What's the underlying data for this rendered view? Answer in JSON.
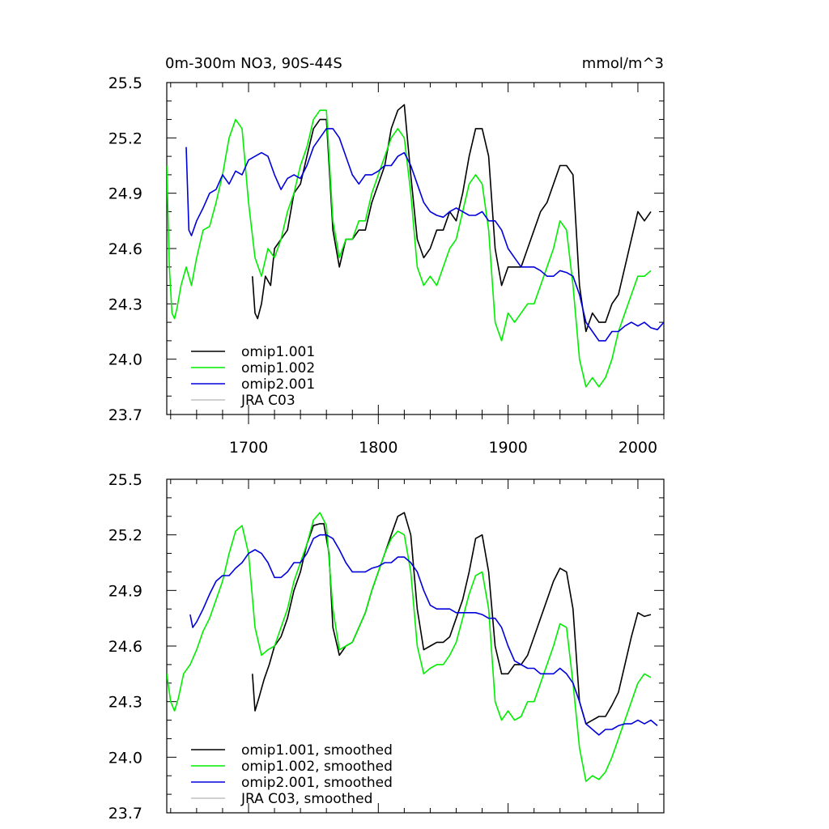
{
  "header": {
    "left_title": "0m-300m NO3, 90S-44S",
    "right_title": "mmol/m^3"
  },
  "chart_data": [
    {
      "type": "line",
      "title": "0m-300m NO3, 90S-44S",
      "units": "mmol/m^3",
      "xlim": [
        1637,
        2020
      ],
      "ylim": [
        23.7,
        25.5
      ],
      "x_ticks": [
        1700,
        1800,
        1900,
        2000
      ],
      "x_tick_labels": [
        "1700",
        "1800",
        "1900",
        "2000"
      ],
      "y_ticks": [
        23.7,
        24.0,
        24.3,
        24.6,
        24.9,
        25.2,
        25.5
      ],
      "y_tick_labels": [
        "23.7",
        "24.0",
        "24.3",
        "24.6",
        "24.9",
        "25.2",
        "25.5"
      ],
      "legend_position": "bottom-left",
      "series": [
        {
          "name": "omip1.001",
          "color": "#000000",
          "x": [
            1703,
            1705,
            1707,
            1710,
            1713,
            1717,
            1720,
            1725,
            1730,
            1735,
            1740,
            1745,
            1750,
            1755,
            1760,
            1765,
            1770,
            1775,
            1780,
            1785,
            1790,
            1795,
            1800,
            1805,
            1810,
            1815,
            1820,
            1825,
            1830,
            1835,
            1840,
            1845,
            1850,
            1855,
            1860,
            1865,
            1870,
            1875,
            1880,
            1885,
            1890,
            1895,
            1900,
            1905,
            1910,
            1915,
            1920,
            1925,
            1930,
            1935,
            1940,
            1945,
            1950,
            1955,
            1960,
            1965,
            1970,
            1975,
            1980,
            1985,
            1990,
            1995,
            2000,
            2005,
            2010
          ],
          "values": [
            24.45,
            24.25,
            24.22,
            24.3,
            24.45,
            24.4,
            24.6,
            24.65,
            24.7,
            24.9,
            24.95,
            25.1,
            25.25,
            25.3,
            25.3,
            24.7,
            24.5,
            24.65,
            24.65,
            24.7,
            24.7,
            24.85,
            24.95,
            25.05,
            25.25,
            25.35,
            25.38,
            25.0,
            24.65,
            24.55,
            24.6,
            24.7,
            24.7,
            24.8,
            24.75,
            24.9,
            25.1,
            25.25,
            25.25,
            25.1,
            24.6,
            24.4,
            24.5,
            24.5,
            24.5,
            24.6,
            24.7,
            24.8,
            24.85,
            24.95,
            25.05,
            25.05,
            25.0,
            24.4,
            24.15,
            24.25,
            24.2,
            24.2,
            24.3,
            24.35,
            24.5,
            24.65,
            24.8,
            24.75,
            24.8
          ]
        },
        {
          "name": "omip1.002",
          "color": "#00ee00",
          "x": [
            1637,
            1639,
            1641,
            1643,
            1645,
            1648,
            1652,
            1656,
            1660,
            1665,
            1670,
            1675,
            1680,
            1685,
            1690,
            1695,
            1700,
            1705,
            1710,
            1715,
            1720,
            1725,
            1730,
            1735,
            1740,
            1745,
            1750,
            1755,
            1760,
            1765,
            1770,
            1775,
            1780,
            1785,
            1790,
            1795,
            1800,
            1805,
            1810,
            1815,
            1820,
            1825,
            1830,
            1835,
            1840,
            1845,
            1850,
            1855,
            1860,
            1865,
            1870,
            1875,
            1880,
            1885,
            1890,
            1895,
            1900,
            1905,
            1910,
            1915,
            1920,
            1925,
            1930,
            1935,
            1940,
            1945,
            1950,
            1955,
            1960,
            1965,
            1970,
            1975,
            1980,
            1985,
            1990,
            1995,
            2000,
            2005,
            2010
          ],
          "values": [
            25.05,
            24.5,
            24.25,
            24.22,
            24.28,
            24.4,
            24.5,
            24.4,
            24.55,
            24.7,
            24.72,
            24.85,
            25.0,
            25.2,
            25.3,
            25.25,
            24.85,
            24.55,
            24.45,
            24.6,
            24.55,
            24.65,
            24.8,
            24.9,
            25.05,
            25.15,
            25.3,
            25.35,
            25.35,
            24.75,
            24.55,
            24.65,
            24.65,
            24.75,
            24.75,
            24.9,
            25.0,
            25.1,
            25.2,
            25.25,
            25.2,
            24.9,
            24.5,
            24.4,
            24.45,
            24.4,
            24.5,
            24.6,
            24.65,
            24.8,
            24.95,
            25.0,
            24.95,
            24.7,
            24.2,
            24.1,
            24.25,
            24.2,
            24.25,
            24.3,
            24.3,
            24.4,
            24.5,
            24.6,
            24.75,
            24.7,
            24.4,
            24.0,
            23.85,
            23.9,
            23.85,
            23.9,
            24.0,
            24.15,
            24.25,
            24.35,
            24.45,
            24.45,
            24.48
          ]
        },
        {
          "name": "omip2.001",
          "color": "#0000dd",
          "x": [
            1652,
            1654,
            1656,
            1660,
            1665,
            1670,
            1675,
            1680,
            1685,
            1690,
            1695,
            1700,
            1705,
            1710,
            1715,
            1720,
            1725,
            1730,
            1735,
            1740,
            1745,
            1750,
            1755,
            1760,
            1765,
            1770,
            1775,
            1780,
            1785,
            1790,
            1795,
            1800,
            1805,
            1810,
            1815,
            1820,
            1825,
            1830,
            1835,
            1840,
            1845,
            1850,
            1855,
            1860,
            1865,
            1870,
            1875,
            1880,
            1885,
            1890,
            1895,
            1900,
            1905,
            1910,
            1915,
            1920,
            1925,
            1930,
            1935,
            1940,
            1945,
            1950,
            1955,
            1960,
            1965,
            1970,
            1975,
            1980,
            1985,
            1990,
            1995,
            2000,
            2005,
            2010,
            2015,
            2020
          ],
          "values": [
            25.15,
            24.7,
            24.67,
            24.75,
            24.82,
            24.9,
            24.92,
            25.0,
            24.95,
            25.02,
            25.0,
            25.08,
            25.1,
            25.12,
            25.1,
            25.0,
            24.92,
            24.98,
            25.0,
            24.98,
            25.05,
            25.15,
            25.2,
            25.25,
            25.25,
            25.2,
            25.1,
            25.0,
            24.95,
            25.0,
            25.0,
            25.02,
            25.05,
            25.05,
            25.1,
            25.12,
            25.05,
            24.95,
            24.85,
            24.8,
            24.78,
            24.77,
            24.8,
            24.82,
            24.8,
            24.78,
            24.78,
            24.8,
            24.75,
            24.75,
            24.7,
            24.6,
            24.55,
            24.5,
            24.5,
            24.5,
            24.48,
            24.45,
            24.45,
            24.48,
            24.47,
            24.45,
            24.35,
            24.2,
            24.15,
            24.1,
            24.1,
            24.15,
            24.15,
            24.18,
            24.2,
            24.18,
            24.2,
            24.17,
            24.16,
            24.2
          ]
        },
        {
          "name": "JRA C03",
          "color": "#c0c0c0",
          "x": [],
          "values": []
        }
      ]
    },
    {
      "type": "line",
      "xlim": [
        1637,
        2020
      ],
      "ylim": [
        23.7,
        25.5
      ],
      "y_ticks": [
        23.7,
        24.0,
        24.3,
        24.6,
        24.9,
        25.2,
        25.5
      ],
      "y_tick_labels": [
        "23.7",
        "24.0",
        "24.3",
        "24.6",
        "24.9",
        "25.2",
        "25.5"
      ],
      "legend_position": "bottom-left",
      "series": [
        {
          "name": "omip1.001, smoothed",
          "color": "#000000",
          "x": [
            1703,
            1705,
            1708,
            1712,
            1716,
            1720,
            1725,
            1730,
            1735,
            1740,
            1745,
            1750,
            1755,
            1758,
            1762,
            1765,
            1770,
            1775,
            1780,
            1785,
            1790,
            1795,
            1800,
            1805,
            1810,
            1815,
            1820,
            1825,
            1830,
            1835,
            1840,
            1845,
            1850,
            1855,
            1860,
            1865,
            1870,
            1875,
            1880,
            1885,
            1890,
            1895,
            1900,
            1905,
            1910,
            1915,
            1920,
            1925,
            1930,
            1935,
            1940,
            1945,
            1950,
            1955,
            1960,
            1965,
            1970,
            1975,
            1980,
            1985,
            1990,
            1995,
            2000,
            2005,
            2010
          ],
          "values": [
            24.45,
            24.25,
            24.32,
            24.42,
            24.5,
            24.6,
            24.65,
            24.75,
            24.9,
            25.0,
            25.15,
            25.25,
            25.26,
            25.26,
            25.1,
            24.7,
            24.55,
            24.6,
            24.62,
            24.7,
            24.78,
            24.9,
            25.0,
            25.1,
            25.2,
            25.3,
            25.32,
            25.2,
            24.8,
            24.58,
            24.6,
            24.62,
            24.62,
            24.65,
            24.75,
            24.85,
            25.0,
            25.18,
            25.2,
            25.0,
            24.6,
            24.45,
            24.45,
            24.5,
            24.5,
            24.55,
            24.65,
            24.75,
            24.85,
            24.95,
            25.02,
            25.0,
            24.8,
            24.3,
            24.18,
            24.2,
            24.22,
            24.22,
            24.28,
            24.35,
            24.5,
            24.65,
            24.78,
            24.76,
            24.77
          ]
        },
        {
          "name": "omip1.002, smoothed",
          "color": "#00ee00",
          "x": [
            1637,
            1640,
            1643,
            1646,
            1650,
            1655,
            1660,
            1665,
            1670,
            1675,
            1680,
            1685,
            1690,
            1695,
            1700,
            1705,
            1710,
            1715,
            1720,
            1725,
            1730,
            1735,
            1740,
            1745,
            1750,
            1755,
            1760,
            1765,
            1770,
            1775,
            1780,
            1785,
            1790,
            1795,
            1800,
            1805,
            1810,
            1815,
            1820,
            1825,
            1830,
            1835,
            1840,
            1845,
            1850,
            1855,
            1860,
            1865,
            1870,
            1875,
            1880,
            1885,
            1890,
            1895,
            1900,
            1905,
            1910,
            1915,
            1920,
            1925,
            1930,
            1935,
            1940,
            1945,
            1950,
            1955,
            1960,
            1965,
            1970,
            1975,
            1980,
            1985,
            1990,
            1995,
            2000,
            2005,
            2010
          ],
          "values": [
            24.45,
            24.3,
            24.25,
            24.32,
            24.45,
            24.5,
            24.58,
            24.68,
            24.75,
            24.85,
            24.95,
            25.1,
            25.22,
            25.25,
            25.1,
            24.7,
            24.55,
            24.58,
            24.6,
            24.7,
            24.8,
            24.95,
            25.05,
            25.15,
            25.28,
            25.32,
            25.25,
            24.8,
            24.58,
            24.6,
            24.62,
            24.7,
            24.78,
            24.9,
            25.0,
            25.1,
            25.18,
            25.22,
            25.2,
            25.0,
            24.6,
            24.45,
            24.48,
            24.5,
            24.5,
            24.55,
            24.62,
            24.75,
            24.88,
            24.98,
            25.0,
            24.8,
            24.3,
            24.2,
            24.25,
            24.2,
            24.22,
            24.3,
            24.3,
            24.4,
            24.5,
            24.6,
            24.72,
            24.7,
            24.4,
            24.05,
            23.87,
            23.9,
            23.88,
            23.92,
            24.0,
            24.1,
            24.2,
            24.3,
            24.4,
            24.45,
            24.43
          ]
        },
        {
          "name": "omip2.001, smoothed",
          "color": "#0000dd",
          "x": [
            1655,
            1657,
            1660,
            1665,
            1670,
            1675,
            1680,
            1685,
            1690,
            1695,
            1700,
            1705,
            1710,
            1715,
            1720,
            1725,
            1730,
            1735,
            1740,
            1745,
            1750,
            1755,
            1760,
            1765,
            1770,
            1775,
            1780,
            1785,
            1790,
            1795,
            1800,
            1805,
            1810,
            1815,
            1820,
            1825,
            1830,
            1835,
            1840,
            1845,
            1850,
            1855,
            1860,
            1865,
            1870,
            1875,
            1880,
            1885,
            1890,
            1895,
            1900,
            1905,
            1910,
            1915,
            1920,
            1925,
            1930,
            1935,
            1940,
            1945,
            1950,
            1955,
            1960,
            1965,
            1970,
            1975,
            1980,
            1985,
            1990,
            1995,
            2000,
            2005,
            2010,
            2015
          ],
          "values": [
            24.77,
            24.7,
            24.73,
            24.8,
            24.88,
            24.95,
            24.98,
            24.98,
            25.02,
            25.05,
            25.1,
            25.12,
            25.1,
            25.05,
            24.97,
            24.97,
            25.0,
            25.05,
            25.05,
            25.1,
            25.18,
            25.2,
            25.2,
            25.18,
            25.12,
            25.05,
            25.0,
            25.0,
            25.0,
            25.02,
            25.03,
            25.05,
            25.05,
            25.08,
            25.08,
            25.05,
            25.0,
            24.9,
            24.82,
            24.8,
            24.8,
            24.8,
            24.78,
            24.78,
            24.78,
            24.78,
            24.77,
            24.75,
            24.75,
            24.7,
            24.6,
            24.52,
            24.5,
            24.48,
            24.48,
            24.45,
            24.45,
            24.45,
            24.48,
            24.45,
            24.4,
            24.3,
            24.18,
            24.15,
            24.12,
            24.15,
            24.15,
            24.17,
            24.18,
            24.18,
            24.2,
            24.18,
            24.2,
            24.17
          ]
        },
        {
          "name": "JRA C03, smoothed",
          "color": "#c0c0c0",
          "x": [],
          "values": []
        }
      ]
    }
  ]
}
